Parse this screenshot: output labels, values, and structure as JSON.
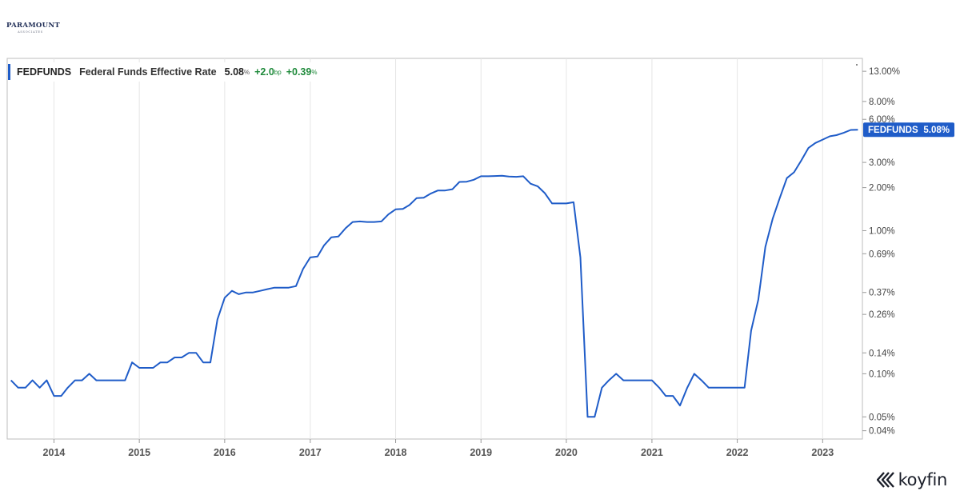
{
  "logo": {
    "name": "PARAMOUNT",
    "sub": "ASSOCIATES"
  },
  "brand": {
    "name": "koyfin"
  },
  "legend": {
    "symbol": "FEDFUNDS",
    "name": "Federal Funds Effective Rate",
    "value": "5.08",
    "value_unit": "%",
    "change_bp": "+2.0",
    "change_bp_unit": "bp",
    "change_pct": "+0.39",
    "change_pct_unit": "%"
  },
  "tag": {
    "label": "FEDFUNDS",
    "value": "5.08%"
  },
  "colors": {
    "series": "#1f5cc8",
    "positive": "#1f8a3b",
    "tag": "#1f5cc8",
    "grid": "#e6e6e6"
  },
  "chart_data": {
    "type": "line",
    "yscale": "log",
    "ylim": [
      0.035,
      16
    ],
    "xlim": [
      "2013-06-15",
      "2023-06-20"
    ],
    "y_ticks": [
      {
        "v": 13,
        "label": "13.00%"
      },
      {
        "v": 8,
        "label": "8.00%"
      },
      {
        "v": 6,
        "label": "6.00%"
      },
      {
        "v": 3,
        "label": "3.00%"
      },
      {
        "v": 2,
        "label": "2.00%"
      },
      {
        "v": 1,
        "label": "1.00%"
      },
      {
        "v": 0.69,
        "label": "0.69%"
      },
      {
        "v": 0.37,
        "label": "0.37%"
      },
      {
        "v": 0.26,
        "label": "0.26%"
      },
      {
        "v": 0.14,
        "label": "0.14%"
      },
      {
        "v": 0.1,
        "label": "0.10%"
      },
      {
        "v": 0.05,
        "label": "0.05%"
      },
      {
        "v": 0.04,
        "label": "0.04%"
      }
    ],
    "x_ticks": [
      {
        "date": "2014-01-01",
        "label": "2014"
      },
      {
        "date": "2015-01-01",
        "label": "2015"
      },
      {
        "date": "2016-01-01",
        "label": "2016"
      },
      {
        "date": "2017-01-01",
        "label": "2017"
      },
      {
        "date": "2018-01-01",
        "label": "2018"
      },
      {
        "date": "2019-01-01",
        "label": "2019"
      },
      {
        "date": "2020-01-01",
        "label": "2020"
      },
      {
        "date": "2021-01-01",
        "label": "2021"
      },
      {
        "date": "2022-01-01",
        "label": "2022"
      },
      {
        "date": "2023-01-01",
        "label": "2023"
      }
    ],
    "grid": true,
    "series": [
      {
        "name": "FEDFUNDS",
        "points": [
          [
            "2013-07-01",
            0.09
          ],
          [
            "2013-08-01",
            0.08
          ],
          [
            "2013-09-01",
            0.08
          ],
          [
            "2013-10-01",
            0.09
          ],
          [
            "2013-11-01",
            0.08
          ],
          [
            "2013-12-01",
            0.09
          ],
          [
            "2014-01-01",
            0.07
          ],
          [
            "2014-02-01",
            0.07
          ],
          [
            "2014-03-01",
            0.08
          ],
          [
            "2014-04-01",
            0.09
          ],
          [
            "2014-05-01",
            0.09
          ],
          [
            "2014-06-01",
            0.1
          ],
          [
            "2014-07-01",
            0.09
          ],
          [
            "2014-08-01",
            0.09
          ],
          [
            "2014-09-01",
            0.09
          ],
          [
            "2014-10-01",
            0.09
          ],
          [
            "2014-11-01",
            0.09
          ],
          [
            "2014-12-01",
            0.12
          ],
          [
            "2015-01-01",
            0.11
          ],
          [
            "2015-02-01",
            0.11
          ],
          [
            "2015-03-01",
            0.11
          ],
          [
            "2015-04-01",
            0.12
          ],
          [
            "2015-05-01",
            0.12
          ],
          [
            "2015-06-01",
            0.13
          ],
          [
            "2015-07-01",
            0.13
          ],
          [
            "2015-08-01",
            0.14
          ],
          [
            "2015-09-01",
            0.14
          ],
          [
            "2015-10-01",
            0.12
          ],
          [
            "2015-11-01",
            0.12
          ],
          [
            "2015-12-01",
            0.24
          ],
          [
            "2016-01-01",
            0.34
          ],
          [
            "2016-02-01",
            0.38
          ],
          [
            "2016-03-01",
            0.36
          ],
          [
            "2016-04-01",
            0.37
          ],
          [
            "2016-05-01",
            0.37
          ],
          [
            "2016-06-01",
            0.38
          ],
          [
            "2016-07-01",
            0.39
          ],
          [
            "2016-08-01",
            0.4
          ],
          [
            "2016-09-01",
            0.4
          ],
          [
            "2016-10-01",
            0.4
          ],
          [
            "2016-11-01",
            0.41
          ],
          [
            "2016-12-01",
            0.54
          ],
          [
            "2017-01-01",
            0.65
          ],
          [
            "2017-02-01",
            0.66
          ],
          [
            "2017-03-01",
            0.79
          ],
          [
            "2017-04-01",
            0.9
          ],
          [
            "2017-05-01",
            0.91
          ],
          [
            "2017-06-01",
            1.04
          ],
          [
            "2017-07-01",
            1.15
          ],
          [
            "2017-08-01",
            1.16
          ],
          [
            "2017-09-01",
            1.15
          ],
          [
            "2017-10-01",
            1.15
          ],
          [
            "2017-11-01",
            1.16
          ],
          [
            "2017-12-01",
            1.3
          ],
          [
            "2018-01-01",
            1.41
          ],
          [
            "2018-02-01",
            1.42
          ],
          [
            "2018-03-01",
            1.51
          ],
          [
            "2018-04-01",
            1.69
          ],
          [
            "2018-05-01",
            1.7
          ],
          [
            "2018-06-01",
            1.82
          ],
          [
            "2018-07-01",
            1.91
          ],
          [
            "2018-08-01",
            1.91
          ],
          [
            "2018-09-01",
            1.95
          ],
          [
            "2018-10-01",
            2.19
          ],
          [
            "2018-11-01",
            2.2
          ],
          [
            "2018-12-01",
            2.27
          ],
          [
            "2019-01-01",
            2.4
          ],
          [
            "2019-02-01",
            2.4
          ],
          [
            "2019-03-01",
            2.41
          ],
          [
            "2019-04-01",
            2.42
          ],
          [
            "2019-05-01",
            2.39
          ],
          [
            "2019-06-01",
            2.38
          ],
          [
            "2019-07-01",
            2.4
          ],
          [
            "2019-08-01",
            2.13
          ],
          [
            "2019-09-01",
            2.04
          ],
          [
            "2019-10-01",
            1.83
          ],
          [
            "2019-11-01",
            1.55
          ],
          [
            "2019-12-01",
            1.55
          ],
          [
            "2020-01-01",
            1.55
          ],
          [
            "2020-02-01",
            1.58
          ],
          [
            "2020-03-01",
            0.65
          ],
          [
            "2020-04-01",
            0.05
          ],
          [
            "2020-05-01",
            0.05
          ],
          [
            "2020-06-01",
            0.08
          ],
          [
            "2020-07-01",
            0.09
          ],
          [
            "2020-08-01",
            0.1
          ],
          [
            "2020-09-01",
            0.09
          ],
          [
            "2020-10-01",
            0.09
          ],
          [
            "2020-11-01",
            0.09
          ],
          [
            "2020-12-01",
            0.09
          ],
          [
            "2021-01-01",
            0.09
          ],
          [
            "2021-02-01",
            0.08
          ],
          [
            "2021-03-01",
            0.07
          ],
          [
            "2021-04-01",
            0.07
          ],
          [
            "2021-05-01",
            0.06
          ],
          [
            "2021-06-01",
            0.08
          ],
          [
            "2021-07-01",
            0.1
          ],
          [
            "2021-08-01",
            0.09
          ],
          [
            "2021-09-01",
            0.08
          ],
          [
            "2021-10-01",
            0.08
          ],
          [
            "2021-11-01",
            0.08
          ],
          [
            "2021-12-01",
            0.08
          ],
          [
            "2022-01-01",
            0.08
          ],
          [
            "2022-02-01",
            0.08
          ],
          [
            "2022-03-01",
            0.2
          ],
          [
            "2022-04-01",
            0.33
          ],
          [
            "2022-05-01",
            0.77
          ],
          [
            "2022-06-01",
            1.21
          ],
          [
            "2022-07-01",
            1.68
          ],
          [
            "2022-08-01",
            2.33
          ],
          [
            "2022-09-01",
            2.56
          ],
          [
            "2022-10-01",
            3.08
          ],
          [
            "2022-11-01",
            3.78
          ],
          [
            "2022-12-01",
            4.1
          ],
          [
            "2023-01-01",
            4.33
          ],
          [
            "2023-02-01",
            4.57
          ],
          [
            "2023-03-01",
            4.65
          ],
          [
            "2023-04-01",
            4.83
          ],
          [
            "2023-05-01",
            5.06
          ],
          [
            "2023-06-01",
            5.08
          ]
        ]
      }
    ]
  }
}
